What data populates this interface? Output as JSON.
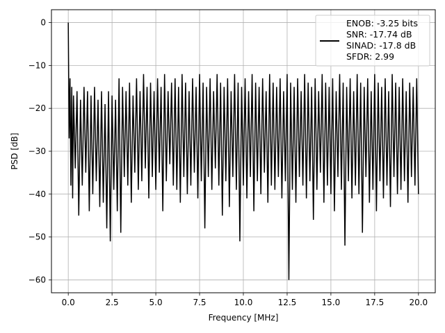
{
  "chart_data": {
    "type": "line",
    "title": "",
    "xlabel": "Frequency [MHz]",
    "ylabel": "PSD [dB]",
    "xlim": [
      -0.96,
      20.96
    ],
    "ylim": [
      -63,
      3
    ],
    "grid": true,
    "x_ticks": [
      0.0,
      2.5,
      5.0,
      7.5,
      10.0,
      12.5,
      15.0,
      17.5,
      20.0
    ],
    "x_tick_labels": [
      "0.0",
      "2.5",
      "5.0",
      "7.5",
      "10.0",
      "12.5",
      "15.0",
      "17.5",
      "20.0"
    ],
    "y_ticks": [
      0,
      -10,
      -20,
      -30,
      -40,
      -50,
      -60
    ],
    "y_tick_labels": [
      "0",
      "−10",
      "−20",
      "−30",
      "−40",
      "−50",
      "−60"
    ],
    "legend": {
      "placement": "top-right",
      "entries": [
        "ENOB: -3.25 bits",
        "SNR: -17.74 dB",
        "SINAD: -17.8 dB",
        "SFDR: 2.99"
      ]
    },
    "series": [
      {
        "color": "#000000",
        "x": [
          0.0,
          0.05,
          0.1,
          0.15,
          0.2,
          0.25,
          0.3,
          0.4,
          0.5,
          0.6,
          0.7,
          0.8,
          0.9,
          1.0,
          1.1,
          1.2,
          1.3,
          1.4,
          1.5,
          1.6,
          1.7,
          1.8,
          1.9,
          2.0,
          2.1,
          2.2,
          2.3,
          2.4,
          2.5,
          2.6,
          2.7,
          2.8,
          2.9,
          3.0,
          3.1,
          3.2,
          3.3,
          3.4,
          3.5,
          3.6,
          3.7,
          3.8,
          3.9,
          4.0,
          4.1,
          4.2,
          4.3,
          4.4,
          4.5,
          4.6,
          4.7,
          4.8,
          4.9,
          5.0,
          5.1,
          5.2,
          5.3,
          5.4,
          5.5,
          5.6,
          5.7,
          5.8,
          5.9,
          6.0,
          6.1,
          6.2,
          6.3,
          6.4,
          6.5,
          6.6,
          6.7,
          6.8,
          6.9,
          7.0,
          7.1,
          7.2,
          7.3,
          7.4,
          7.5,
          7.6,
          7.7,
          7.8,
          7.9,
          8.0,
          8.1,
          8.2,
          8.3,
          8.4,
          8.5,
          8.6,
          8.7,
          8.8,
          8.9,
          9.0,
          9.1,
          9.2,
          9.3,
          9.4,
          9.5,
          9.6,
          9.7,
          9.8,
          9.9,
          10.0,
          10.1,
          10.2,
          10.3,
          10.4,
          10.5,
          10.6,
          10.7,
          10.8,
          10.9,
          11.0,
          11.1,
          11.2,
          11.3,
          11.4,
          11.5,
          11.6,
          11.7,
          11.8,
          11.9,
          12.0,
          12.1,
          12.2,
          12.3,
          12.4,
          12.5,
          12.6,
          12.7,
          12.8,
          12.9,
          13.0,
          13.1,
          13.2,
          13.3,
          13.4,
          13.5,
          13.6,
          13.7,
          13.8,
          13.9,
          14.0,
          14.1,
          14.2,
          14.3,
          14.4,
          14.5,
          14.6,
          14.7,
          14.8,
          14.9,
          15.0,
          15.1,
          15.2,
          15.3,
          15.4,
          15.5,
          15.6,
          15.7,
          15.8,
          15.9,
          16.0,
          16.1,
          16.2,
          16.3,
          16.4,
          16.5,
          16.6,
          16.7,
          16.8,
          16.9,
          17.0,
          17.1,
          17.2,
          17.3,
          17.4,
          17.5,
          17.6,
          17.7,
          17.8,
          17.9,
          18.0,
          18.1,
          18.2,
          18.3,
          18.4,
          18.5,
          18.6,
          18.7,
          18.8,
          18.9,
          19.0,
          19.1,
          19.2,
          19.3,
          19.4,
          19.5,
          19.6,
          19.7,
          19.8,
          19.9,
          20.0
        ],
        "y": [
          0,
          -27,
          -13,
          -38,
          -15,
          -41,
          -17,
          -34,
          -16,
          -45,
          -18,
          -38,
          -15,
          -35,
          -16,
          -44,
          -17,
          -40,
          -15,
          -37,
          -18,
          -43,
          -16,
          -42,
          -19,
          -48,
          -16,
          -51,
          -17,
          -39,
          -18,
          -44,
          -13,
          -49,
          -15,
          -36,
          -16,
          -38,
          -14,
          -42,
          -17,
          -35,
          -13,
          -39,
          -16,
          -37,
          -12,
          -34,
          -15,
          -41,
          -14,
          -36,
          -16,
          -39,
          -13,
          -35,
          -15,
          -44,
          -12,
          -37,
          -16,
          -33,
          -14,
          -38,
          -13,
          -39,
          -15,
          -42,
          -12,
          -36,
          -14,
          -40,
          -16,
          -38,
          -13,
          -35,
          -15,
          -41,
          -12,
          -37,
          -14,
          -48,
          -15,
          -36,
          -13,
          -39,
          -16,
          -34,
          -12,
          -38,
          -14,
          -45,
          -15,
          -37,
          -13,
          -43,
          -16,
          -36,
          -12,
          -39,
          -14,
          -51,
          -15,
          -38,
          -13,
          -41,
          -16,
          -36,
          -12,
          -44,
          -14,
          -37,
          -15,
          -40,
          -13,
          -35,
          -16,
          -42,
          -12,
          -38,
          -14,
          -39,
          -15,
          -36,
          -13,
          -41,
          -16,
          -37,
          -12,
          -60,
          -14,
          -39,
          -15,
          -42,
          -13,
          -36,
          -16,
          -38,
          -12,
          -41,
          -14,
          -37,
          -15,
          -46,
          -13,
          -39,
          -16,
          -35,
          -12,
          -42,
          -14,
          -38,
          -15,
          -40,
          -13,
          -44,
          -16,
          -36,
          -12,
          -39,
          -14,
          -52,
          -15,
          -37,
          -13,
          -41,
          -16,
          -38,
          -12,
          -40,
          -14,
          -49,
          -15,
          -36,
          -13,
          -42,
          -16,
          -39,
          -12,
          -44,
          -14,
          -37,
          -15,
          -41,
          -13,
          -38,
          -16,
          -43,
          -12,
          -36,
          -14,
          -40,
          -15,
          -39,
          -13,
          -37,
          -16,
          -42,
          -14,
          -36,
          -15,
          -38,
          -13,
          -40
        ]
      }
    ]
  }
}
